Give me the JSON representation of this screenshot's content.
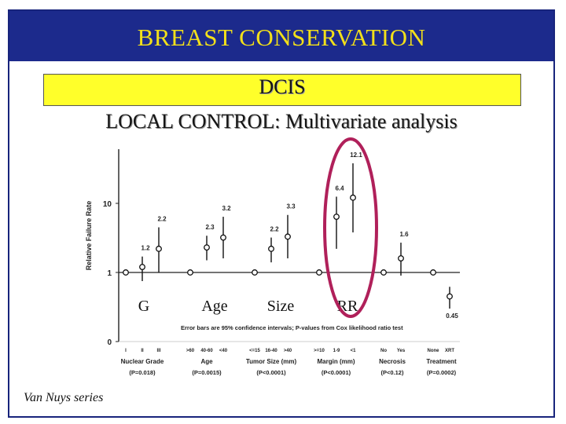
{
  "slide": {
    "title": "BREAST CONSERVATION",
    "subtitle_line1": "DCIS",
    "subtitle_line2": "LOCAL CONTROL: Multivariate analysis",
    "credit": "Van Nuys series",
    "accent_colors": {
      "title_bar": "#1c2a8c",
      "title_text": "#f2e01a",
      "highlight_box": "#ffff2a",
      "circle_highlight": "#b0205a"
    }
  },
  "chart_data": {
    "type": "scatter",
    "ylabel": "Relative Failure Rate",
    "y_ticks": [
      "0",
      "1",
      "10"
    ],
    "y_scale": "log",
    "note": "Error bars are 95% confidence intervals; P-values from Cox likelihood ratio test",
    "overlay_labels": [
      "G",
      "Age",
      "Size",
      "RR"
    ],
    "groups": [
      {
        "name": "Nuclear Grade",
        "p_value": "(P=0.018)",
        "points": [
          {
            "category": "I",
            "value": 1,
            "value_label": ""
          },
          {
            "category": "II",
            "value": 1.2,
            "value_label": "1.2",
            "ci": [
              0.75,
              1.7
            ]
          },
          {
            "category": "III",
            "value": 2.2,
            "value_label": "2.2",
            "ci": [
              1.0,
              4.5
            ]
          }
        ]
      },
      {
        "name": "Age",
        "p_value": "(P=0.0015)",
        "points": [
          {
            "category": ">60",
            "value": 1,
            "value_label": ""
          },
          {
            "category": "40-60",
            "value": 2.3,
            "value_label": "2.3",
            "ci": [
              1.5,
              3.4
            ]
          },
          {
            "category": "<40",
            "value": 3.2,
            "value_label": "3.2",
            "ci": [
              1.6,
              6.4
            ]
          }
        ]
      },
      {
        "name": "Tumor Size (mm)",
        "p_value": "(P<0.0001)",
        "points": [
          {
            "category": "<=15",
            "value": 1,
            "value_label": ""
          },
          {
            "category": "16-40",
            "value": 2.2,
            "value_label": "2.2",
            "ci": [
              1.4,
              3.2
            ]
          },
          {
            "category": ">40",
            "value": 3.3,
            "value_label": "3.3",
            "ci": [
              1.6,
              6.8
            ]
          }
        ]
      },
      {
        "name": "Margin (mm)",
        "p_value": "(P<0.0001)",
        "points": [
          {
            "category": ">=10",
            "value": 1,
            "value_label": ""
          },
          {
            "category": "1-9",
            "value": 6.4,
            "value_label": "6.4",
            "ci": [
              2.2,
              12.5
            ]
          },
          {
            "category": "<1",
            "value": 12.1,
            "value_label": "12.1",
            "ci": [
              3.8,
              38
            ]
          }
        ]
      },
      {
        "name": "Necrosis",
        "p_value": "(P<0.12)",
        "points": [
          {
            "category": "No",
            "value": 1,
            "value_label": ""
          },
          {
            "category": "Yes",
            "value": 1.6,
            "value_label": "1.6",
            "ci": [
              0.9,
              2.7
            ]
          }
        ]
      },
      {
        "name": "Treatment",
        "p_value": "(P=0.0002)",
        "points": [
          {
            "category": "None",
            "value": 1,
            "value_label": ""
          },
          {
            "category": "XRT",
            "value": 0.45,
            "value_label": "0.45",
            "ci": [
              0.3,
              0.62
            ]
          }
        ]
      }
    ]
  }
}
